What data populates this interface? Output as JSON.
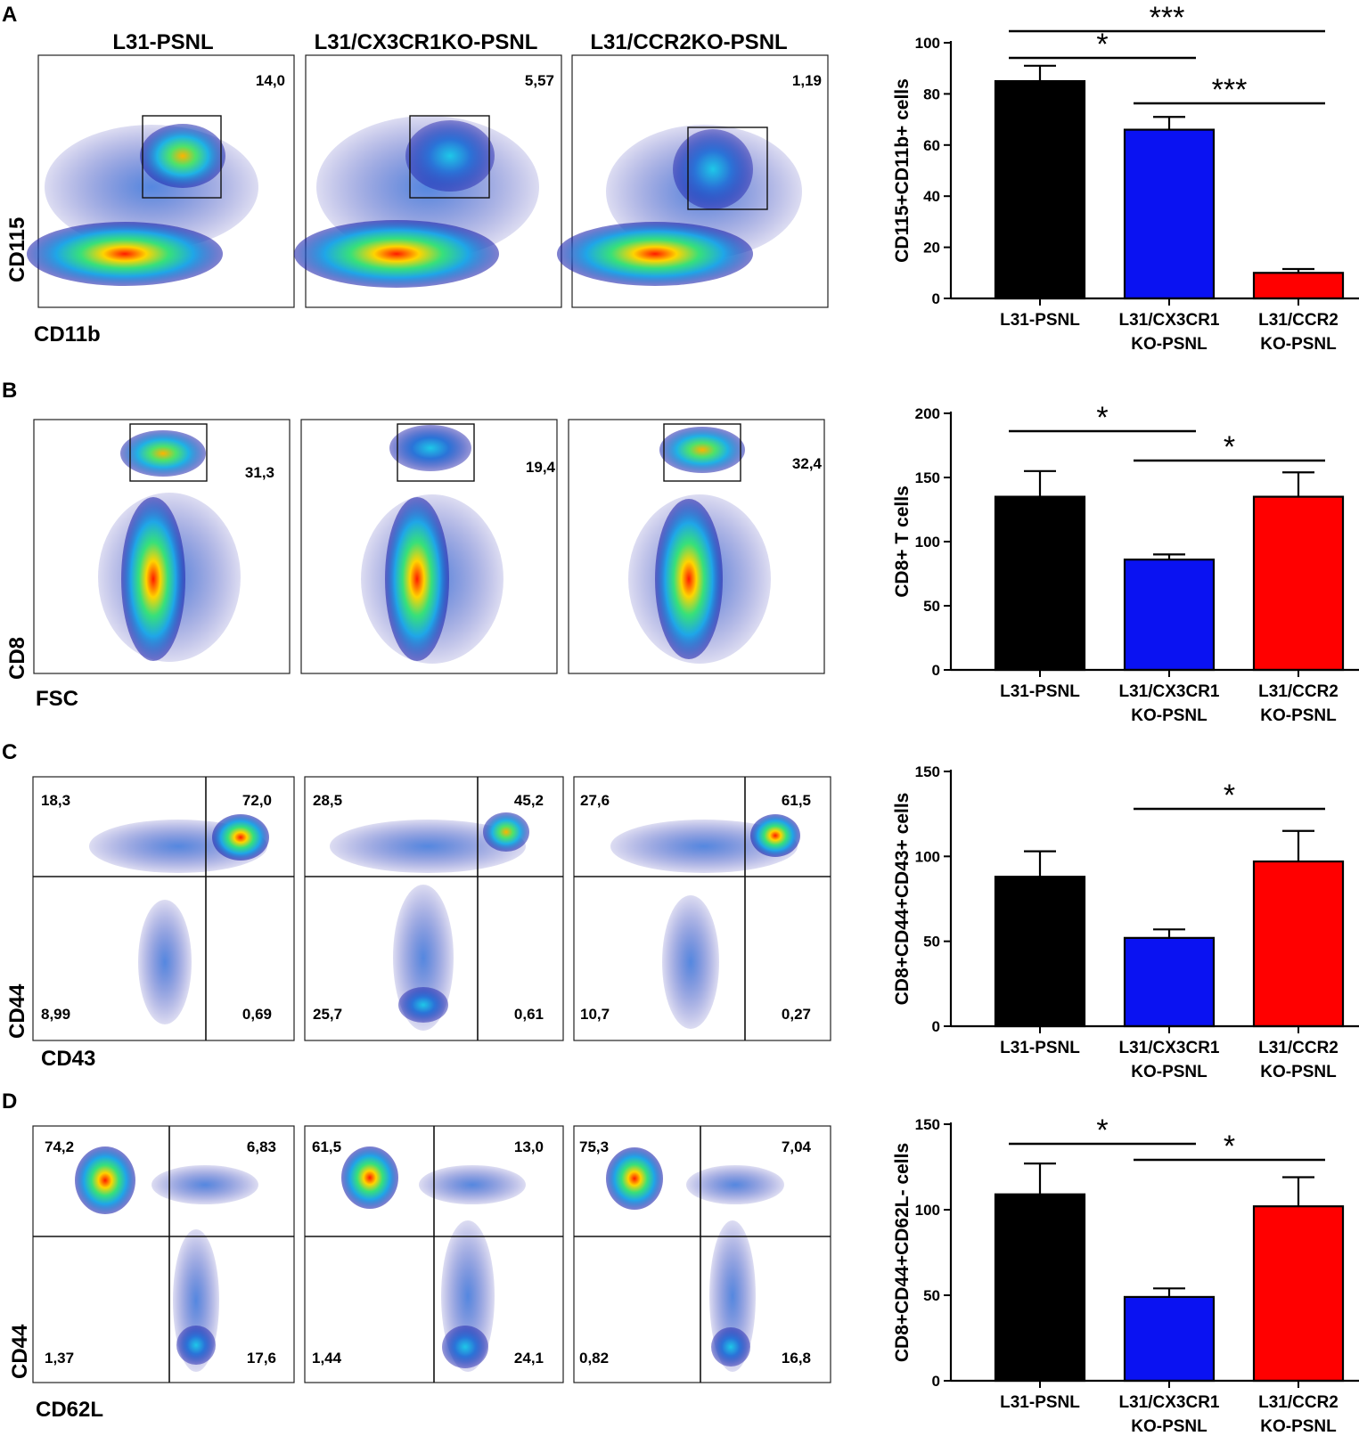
{
  "column_titles": [
    "L31-PSNL",
    "L31/CX3CR1KO-PSNL",
    "L31/CCR2KO-PSNL"
  ],
  "colors": {
    "L31-PSNL": "#000000",
    "L31/CX3CR1KO-PSNL": "#0a12f2",
    "L31/CCR2KO-PSNL": "#ff0000",
    "density_low": "#1a1aa8",
    "density_high": "#ff1a00"
  },
  "panels": [
    {
      "letter": "A",
      "flow": {
        "y_marker": "CD115",
        "x_marker": "CD11b",
        "plot_type": "gate",
        "gate_values": [
          "14,0",
          "5,57",
          "1,19"
        ]
      },
      "chart_data": {
        "type": "bar",
        "categories": [
          "L31-PSNL",
          "L31/CX3CR1\nKO-PSNL",
          "L31/CCR2\nKO-PSNL"
        ],
        "values": [
          85,
          66,
          10
        ],
        "errors": [
          6,
          5,
          1.5
        ],
        "ylabel": "CD115+CD11b+ cells",
        "ylim": [
          0,
          100
        ],
        "yticks": [
          0,
          20,
          40,
          60,
          80,
          100
        ],
        "significance": [
          {
            "from": 0,
            "to": 1,
            "label": "*"
          },
          {
            "from": 1,
            "to": 2,
            "label": "***"
          },
          {
            "from": 0,
            "to": 2,
            "label": "***"
          }
        ]
      }
    },
    {
      "letter": "B",
      "flow": {
        "y_marker": "CD8",
        "x_marker": "FSC",
        "plot_type": "gate",
        "gate_values": [
          "31,3",
          "19,4",
          "32,4"
        ]
      },
      "chart_data": {
        "type": "bar",
        "categories": [
          "L31-PSNL",
          "L31/CX3CR1\nKO-PSNL",
          "L31/CCR2\nKO-PSNL"
        ],
        "values": [
          135,
          86,
          135
        ],
        "errors": [
          20,
          4,
          19
        ],
        "ylabel": "CD8+ T cells",
        "ylim": [
          0,
          200
        ],
        "yticks": [
          0,
          50,
          100,
          150,
          200
        ],
        "significance": [
          {
            "from": 0,
            "to": 1,
            "label": "*"
          },
          {
            "from": 1,
            "to": 2,
            "label": "*"
          }
        ]
      }
    },
    {
      "letter": "C",
      "flow": {
        "y_marker": "CD44",
        "x_marker": "CD43",
        "plot_type": "quadrant",
        "quadrant_values": [
          {
            "ul": "18,3",
            "ur": "72,0",
            "ll": "8,99",
            "lr": "0,69"
          },
          {
            "ul": "28,5",
            "ur": "45,2",
            "ll": "25,7",
            "lr": "0,61"
          },
          {
            "ul": "27,6",
            "ur": "61,5",
            "ll": "10,7",
            "lr": "0,27"
          }
        ]
      },
      "chart_data": {
        "type": "bar",
        "categories": [
          "L31-PSNL",
          "L31/CX3CR1\nKO-PSNL",
          "L31/CCR2\nKO-PSNL"
        ],
        "values": [
          88,
          52,
          97
        ],
        "errors": [
          15,
          5,
          18
        ],
        "ylabel": "CD8+CD44+CD43+ cells",
        "ylim": [
          0,
          150
        ],
        "yticks": [
          0,
          50,
          100,
          150
        ],
        "significance": [
          {
            "from": 1,
            "to": 2,
            "label": "*"
          }
        ]
      }
    },
    {
      "letter": "D",
      "flow": {
        "y_marker": "CD44",
        "x_marker": "CD62L",
        "plot_type": "quadrant",
        "quadrant_values": [
          {
            "ul": "74,2",
            "ur": "6,83",
            "ll": "1,37",
            "lr": "17,6"
          },
          {
            "ul": "61,5",
            "ur": "13,0",
            "ll": "1,44",
            "lr": "24,1"
          },
          {
            "ul": "75,3",
            "ur": "7,04",
            "ll": "0,82",
            "lr": "16,8"
          }
        ]
      },
      "chart_data": {
        "type": "bar",
        "categories": [
          "L31-PSNL",
          "L31/CX3CR1\nKO-PSNL",
          "L31/CCR2\nKO-PSNL"
        ],
        "values": [
          109,
          49,
          102
        ],
        "errors": [
          18,
          5,
          17
        ],
        "ylabel": "CD8+CD44+CD62L- cells",
        "ylim": [
          0,
          150
        ],
        "yticks": [
          0,
          50,
          100,
          150
        ],
        "significance": [
          {
            "from": 0,
            "to": 1,
            "label": "*"
          },
          {
            "from": 1,
            "to": 2,
            "label": "*"
          }
        ]
      }
    }
  ]
}
